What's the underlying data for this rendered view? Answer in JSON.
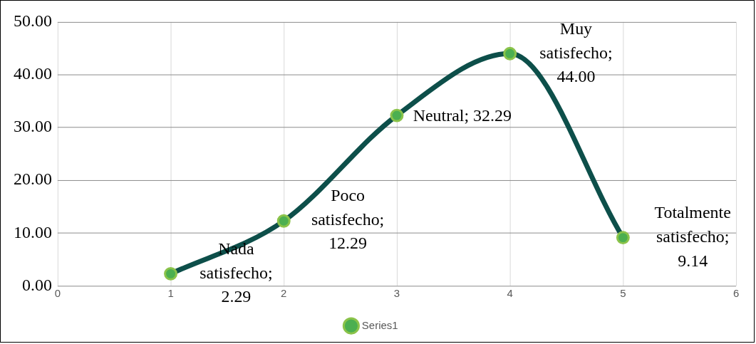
{
  "chart_data": {
    "type": "line",
    "x": [
      1,
      2,
      3,
      4,
      5
    ],
    "series": [
      {
        "name": "Series1",
        "color": "#0d4f4a",
        "values": [
          2.29,
          12.29,
          32.29,
          44.0,
          9.14
        ],
        "value_labels": [
          "Nada satisfecho; 2.29",
          "Poco satisfecho; 12.29",
          "Neutral; 32.29",
          "Muy satisfecho; 44.00",
          "Totalmente satisfecho; 9.14"
        ]
      }
    ],
    "xlim": [
      0,
      6
    ],
    "xticks": [
      0,
      1,
      2,
      3,
      4,
      5,
      6
    ],
    "ylim": [
      0,
      50
    ],
    "yticks": [
      {
        "value": 0,
        "label": "0.00"
      },
      {
        "value": 10,
        "label": "10.00"
      },
      {
        "value": 20,
        "label": "20.00"
      },
      {
        "value": 30,
        "label": "30.00"
      },
      {
        "value": 40,
        "label": "40.00"
      },
      {
        "value": 50,
        "label": "50.00"
      }
    ],
    "grid": true,
    "legend": "bottom",
    "marker": "circle",
    "line_style": "solid"
  }
}
